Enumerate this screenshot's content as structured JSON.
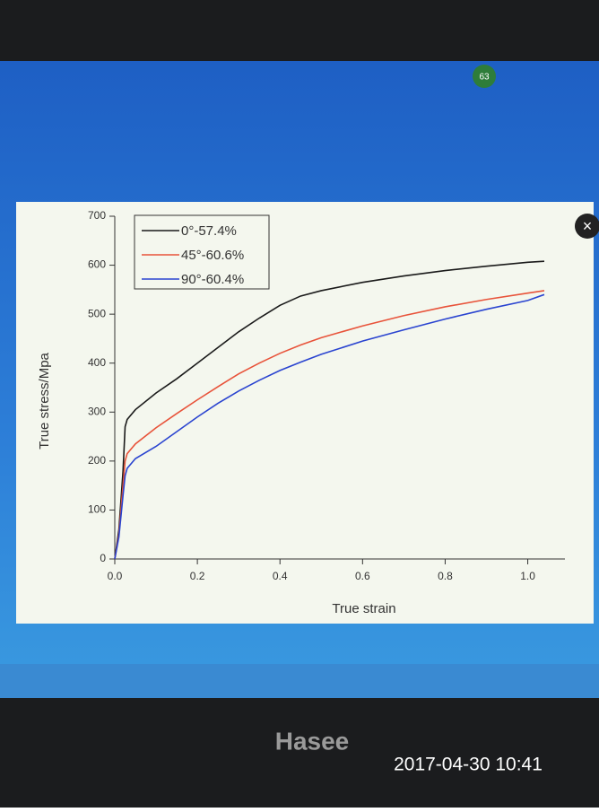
{
  "chart_data": {
    "type": "line",
    "x_label": "True strain",
    "y_label": "True stress/Mpa",
    "x": [
      0,
      0.01,
      0.02,
      0.025,
      0.03,
      0.05,
      0.1,
      0.15,
      0.2,
      0.25,
      0.3,
      0.35,
      0.4,
      0.45,
      0.5,
      0.6,
      0.7,
      0.8,
      0.9,
      1.0,
      1.04
    ],
    "series": [
      {
        "name": "0°-57.4%",
        "color": "#1a1a1a",
        "values": [
          0,
          60,
          180,
          270,
          285,
          305,
          339,
          368,
          400,
          432,
          464,
          492,
          518,
          537,
          548,
          565,
          578,
          589,
          598,
          606,
          608
        ]
      },
      {
        "name": "45°-60.6%",
        "color": "#e8533a",
        "values": [
          0,
          50,
          150,
          200,
          215,
          235,
          268,
          297,
          325,
          352,
          378,
          400,
          420,
          437,
          452,
          476,
          497,
          515,
          530,
          543,
          548
        ]
      },
      {
        "name": "90°-60.4%",
        "color": "#2a44d0",
        "values": [
          0,
          45,
          130,
          170,
          185,
          205,
          230,
          260,
          290,
          318,
          343,
          365,
          385,
          402,
          418,
          445,
          468,
          490,
          510,
          528,
          540
        ]
      }
    ],
    "xlim": [
      0,
      1.09
    ],
    "ylim": [
      0,
      700
    ],
    "xticks": [
      {
        "value": 0,
        "label": "0.0"
      },
      0.2,
      0.4,
      0.6,
      0.8,
      {
        "value": 1,
        "label": "1.0"
      }
    ],
    "yticks": [
      0,
      100,
      200,
      300,
      400,
      500,
      600,
      700
    ],
    "legend": "upper left"
  },
  "screen": {
    "badge": "63",
    "brand": "Hasee",
    "timestamp": "2017-04-30 10:41"
  }
}
